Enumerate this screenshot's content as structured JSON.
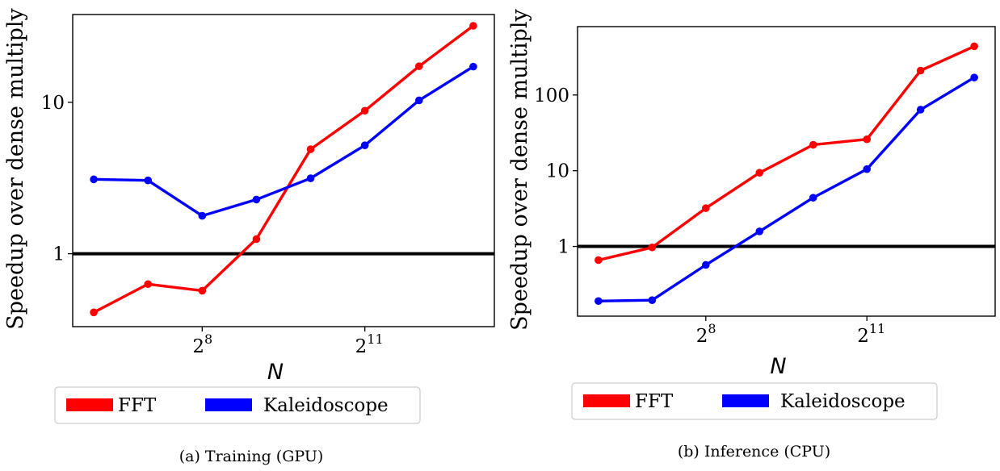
{
  "colors": {
    "fft": "#ff0000",
    "kaleidoscope": "#0000ff",
    "baseline": "#000000"
  },
  "chart_data": [
    {
      "type": "line",
      "caption": "(a) Training (GPU)",
      "xlabel": "N",
      "ylabel": "Speedup over dense multiply",
      "x_scale": "log2",
      "y_scale": "log10",
      "x": [
        64,
        128,
        256,
        512,
        1024,
        2048,
        4096,
        8192
      ],
      "xticks": [
        {
          "base": "2",
          "exp": "8",
          "value": 256
        },
        {
          "base": "2",
          "exp": "11",
          "value": 2048
        }
      ],
      "yticks": [
        {
          "label": "1",
          "value": 1
        },
        {
          "label": "10",
          "value": 10
        }
      ],
      "ylim": [
        0.33,
        38
      ],
      "baseline": 1,
      "legend": {
        "position": "bottom",
        "entries": [
          "FFT",
          "Kaleidoscope"
        ]
      },
      "series": [
        {
          "name": "FFT",
          "values": [
            0.41,
            0.63,
            0.57,
            1.25,
            4.9,
            8.8,
            17.3,
            32
          ]
        },
        {
          "name": "Kaleidoscope",
          "values": [
            3.1,
            3.05,
            1.78,
            2.28,
            3.15,
            5.2,
            10.3,
            17.2
          ]
        }
      ]
    },
    {
      "type": "line",
      "caption": "(b) Inference (CPU)",
      "xlabel": "N",
      "ylabel": "Speedup over dense multiply",
      "x_scale": "log2",
      "y_scale": "log10",
      "x": [
        64,
        128,
        256,
        512,
        1024,
        2048,
        4096,
        8192
      ],
      "xticks": [
        {
          "base": "2",
          "exp": "8",
          "value": 256
        },
        {
          "base": "2",
          "exp": "11",
          "value": 2048
        }
      ],
      "yticks": [
        {
          "label": "1",
          "value": 1
        },
        {
          "label": "10",
          "value": 10
        },
        {
          "label": "100",
          "value": 100
        }
      ],
      "ylim": [
        0.12,
        800
      ],
      "baseline": 1,
      "legend": {
        "position": "bottom",
        "entries": [
          "FFT",
          "Kaleidoscope"
        ]
      },
      "series": [
        {
          "name": "FFT",
          "values": [
            0.66,
            0.97,
            3.2,
            9.4,
            22,
            26,
            210,
            440
          ]
        },
        {
          "name": "Kaleidoscope",
          "values": [
            0.19,
            0.195,
            0.57,
            1.58,
            4.4,
            10.5,
            64,
            170
          ]
        }
      ]
    }
  ]
}
